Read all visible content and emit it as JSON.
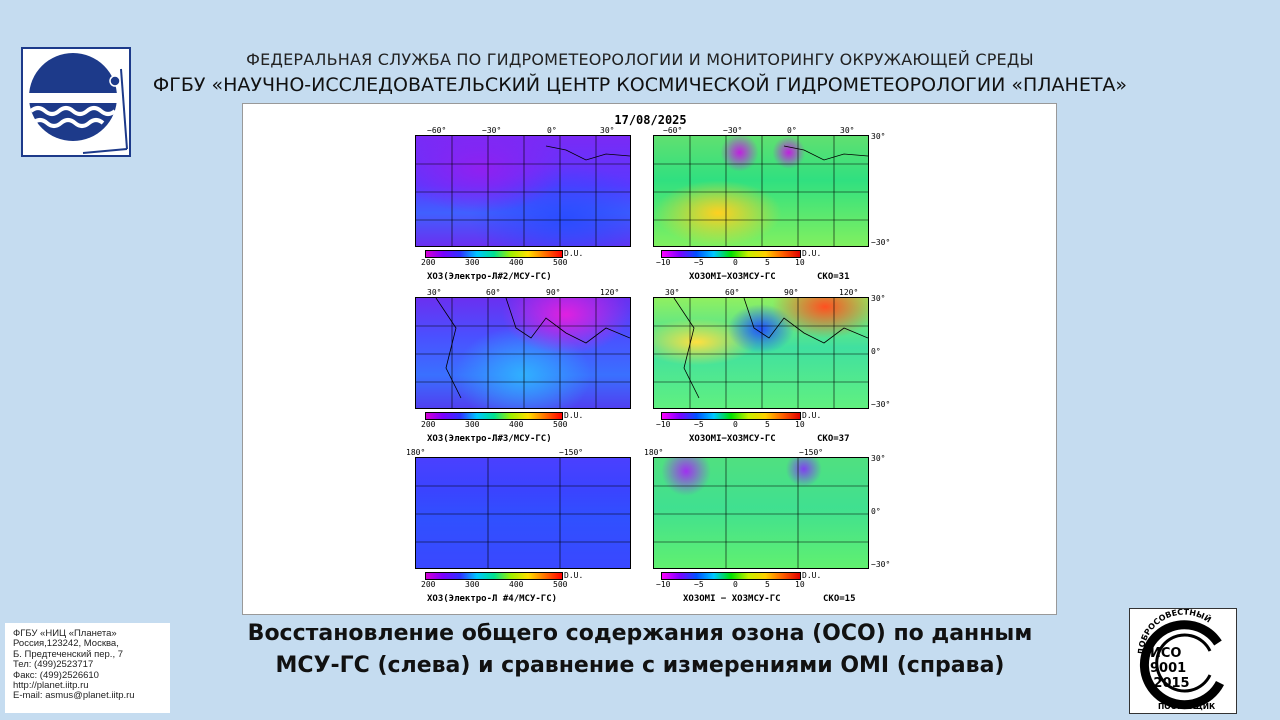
{
  "header": {
    "line1": "ФЕДЕРАЛЬНАЯ СЛУЖБА ПО ГИДРОМЕТЕОРОЛОГИИ И МОНИТОРИНГУ ОКРУЖАЮЩЕЙ СРЕДЫ",
    "line2": "ФГБУ «НАУЧНО-ИССЛЕДОВАТЕЛЬСКИЙ ЦЕНТР КОСМИЧЕСКОЙ ГИДРОМЕТЕОРОЛОГИИ «ПЛАНЕТА»"
  },
  "figure": {
    "date": "17/08/2025",
    "lat_labels": [
      "30°",
      "0°",
      "−30°"
    ],
    "unit": "D.U.",
    "left_ticks": [
      "200",
      "300",
      "400",
      "500"
    ],
    "right_ticks": [
      "−10",
      "−5",
      "0",
      "5",
      "10"
    ],
    "rows": [
      {
        "lon_labels": [
          "−60°",
          "−30°",
          "0°",
          "30°"
        ],
        "left_title": "XO3(Электро-Л#2/МСУ-ГС)",
        "right_title": "XO3OMI−XO3МСУ-ГС",
        "sko": "СКО=31"
      },
      {
        "lon_labels": [
          "30°",
          "60°",
          "90°",
          "120°"
        ],
        "left_title": "XO3(Электро-Л#3/МСУ-ГС)",
        "right_title": "XO3OMI−XO3МСУ-ГС",
        "sko": "СКО=37"
      },
      {
        "lon_labels": [
          "180°",
          "−150°"
        ],
        "left_title": "XO3(Электро-Л #4/МСУ-ГС)",
        "right_title": "XO3OMI − XO3МСУ-ГС",
        "sko": "СКО=15"
      }
    ]
  },
  "caption": {
    "line1": "Восстановление общего содержания озона (ОСО) по данным",
    "line2": "МСУ-ГС (слева) и сравнение с измерениями OMI (справа)"
  },
  "contact": {
    "lines": [
      "ФГБУ «НИЦ «Планета»",
      "Россия,123242, Москва,",
      "Б. Предтеченский пер., 7",
      "Тел:   (499)2523717",
      "Факс: (499)2526610",
      "http://planet.iitp.ru",
      "E-mail: asmus@planet.iitp.ru"
    ]
  },
  "cert": {
    "top_text": "ДОБРОСОВЕСТНЫЙ",
    "iso": "ИСО",
    "num": "9001",
    "year": "-2015",
    "bottom_text": "ПОСТАВЩИК"
  },
  "colors": {
    "background": "#c5dcf0",
    "logo_blue": "#1d3a8a"
  }
}
